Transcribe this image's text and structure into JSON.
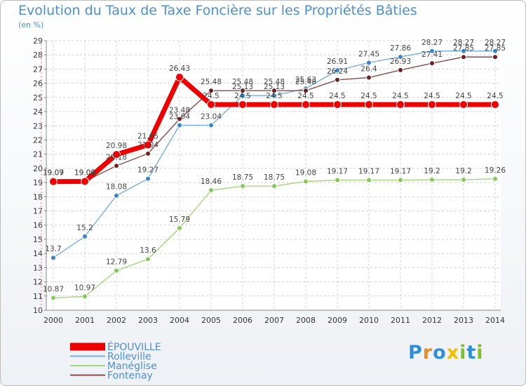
{
  "chart_data": {
    "type": "line",
    "title": "Evolution du Taux de Taxe Foncière sur les Propriétés Bâties",
    "subtitle": "(en %)",
    "x": [
      "2000",
      "2001",
      "2002",
      "2003",
      "2004",
      "2005",
      "2006",
      "2007",
      "2008",
      "2009",
      "2010",
      "2011",
      "2012",
      "2013",
      "2014"
    ],
    "ylim": [
      10,
      29
    ],
    "yticks": [
      10,
      11,
      12,
      13,
      14,
      15,
      16,
      17,
      18,
      19,
      20,
      21,
      22,
      23,
      24,
      25,
      26,
      27,
      28,
      29
    ],
    "series": [
      {
        "name": "Rolleville",
        "color": "#7aaede",
        "marker": "#3a84c8",
        "width": 1.4,
        "values": [
          13.7,
          15.2,
          18.08,
          19.27,
          23.04,
          23.04,
          25.13,
          25.13,
          25.63,
          26.91,
          27.45,
          27.86,
          28.27,
          28.27,
          28.27
        ]
      },
      {
        "name": "Manéglise",
        "color": "#a2d677",
        "marker": "#86c85a",
        "width": 1.4,
        "values": [
          10.87,
          10.97,
          12.79,
          13.6,
          15.79,
          18.46,
          18.75,
          18.75,
          19.08,
          19.17,
          19.17,
          19.17,
          19.2,
          19.2,
          19.26
        ]
      },
      {
        "name": "Fontenay",
        "color": "#8a4b4b",
        "marker": "#6b1f1f",
        "width": 1.4,
        "values": [
          19.09,
          19.09,
          20.18,
          21.04,
          23.48,
          25.48,
          25.48,
          25.48,
          25.48,
          26.24,
          26.4,
          26.93,
          27.41,
          27.85,
          27.85
        ]
      },
      {
        "name": "ÉPOUVILLE",
        "color": "#ee0000",
        "marker": "#ee0000",
        "width": 7,
        "values": [
          19.07,
          19.08,
          20.98,
          21.65,
          26.43,
          24.5,
          24.5,
          24.5,
          24.5,
          24.5,
          24.5,
          24.5,
          24.5,
          24.5,
          24.5
        ]
      }
    ],
    "legend": [
      "ÉPOUVILLE",
      "Rolleville",
      "Manéglise",
      "Fontenay"
    ]
  },
  "brand": {
    "letters": [
      "P",
      "r",
      "o",
      "x",
      "i",
      "t",
      "i"
    ],
    "colors": [
      "#2f8fd6",
      "#ee8a1a",
      "#2f8fd6",
      "#f0c000",
      "#7fbf2a",
      "#2f8fd6",
      "#7fbf2a"
    ]
  }
}
